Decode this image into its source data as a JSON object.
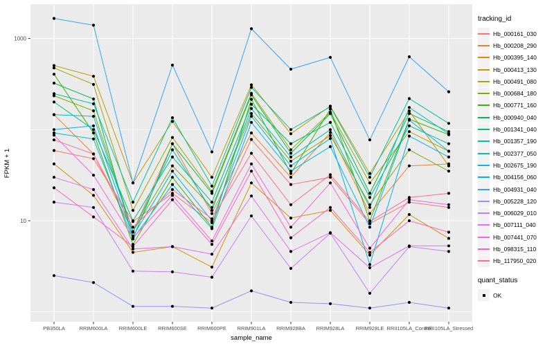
{
  "chart_data": {
    "type": "line",
    "title": "",
    "xlabel": "sample_name",
    "ylabel": "FPKM + 1",
    "x_categories": [
      "PB350LA",
      "RRIM600LA",
      "RRIM600LE",
      "RRIM600SE",
      "RRIM600PE",
      "RRIM901LA",
      "RRIM928BA",
      "RRIM928LA",
      "RRIM928LE",
      "RRII105LA_Control",
      "RRII105LA_Stressed"
    ],
    "y_scale": "log10",
    "ylim": [
      0.8,
      2300
    ],
    "y_ticks": [
      {
        "value": 10,
        "label": "10"
      },
      {
        "value": 1000,
        "label": "1000"
      }
    ],
    "y_gridlines_major": [
      10,
      1000
    ],
    "y_gridlines_minor": [
      1,
      100
    ],
    "grid": true,
    "legend_position": "right",
    "legend_titles": {
      "series": "tracking_id",
      "status": "quant_status"
    },
    "quant_status_items": [
      {
        "label": "OK",
        "marker": "black-square"
      }
    ],
    "point_marker": {
      "shape": "dot",
      "color": "#000000"
    },
    "colors": {
      "panel_bg": "#EBEBEB",
      "gridline": "#FFFFFF",
      "tick_text": "#4D4D4D",
      "axis_title": "#000000",
      "legend_key_bg": "#F2F2F2",
      "point": "#000000"
    },
    "series": [
      {
        "name": "Hb_000161_030",
        "color": "#F8766D",
        "values": [
          59,
          48,
          9.8,
          20,
          9.5,
          78,
          25,
          30,
          9.3,
          16,
          14
        ]
      },
      {
        "name": "Hb_000208_290",
        "color": "#EA8331",
        "values": [
          146,
          54,
          7.6,
          70,
          12,
          92,
          30,
          93,
          12,
          40,
          42
        ]
      },
      {
        "name": "Hb_000395_140",
        "color": "#D89000",
        "values": [
          42,
          19,
          4.5,
          5.2,
          3.1,
          26,
          10.7,
          13,
          4.2,
          11.7,
          6.4
        ]
      },
      {
        "name": "Hb_000413_130",
        "color": "#C09B00",
        "values": [
          505,
          385,
          26,
          123,
          30,
          310,
          90,
          181,
          33,
          160,
          40
        ]
      },
      {
        "name": "Hb_000491_080",
        "color": "#A3A500",
        "values": [
          475,
          313,
          13,
          82,
          21,
          250,
          60,
          155,
          26,
          95,
          58
        ]
      },
      {
        "name": "Hb_000684_180",
        "color": "#7CAE00",
        "values": [
          235,
          161,
          7.6,
          40,
          14,
          150,
          45,
          86,
          15,
          60,
          35
        ]
      },
      {
        "name": "Hb_000771_160",
        "color": "#39B600",
        "values": [
          406,
          92,
          5.5,
          30,
          8.5,
          215,
          33,
          168,
          10,
          130,
          88
        ]
      },
      {
        "name": "Hb_000940_040",
        "color": "#00BB4E",
        "values": [
          324,
          217,
          6.4,
          70,
          20,
          240,
          55,
          150,
          20,
          150,
          95
        ]
      },
      {
        "name": "Hb_001341_040",
        "color": "#00BF7D",
        "values": [
          201,
          100,
          10,
          50,
          16,
          190,
          70,
          120,
          18,
          110,
          70
        ]
      },
      {
        "name": "Hb_001357_190",
        "color": "#00C1A3",
        "values": [
          248,
          192,
          16,
          135,
          24,
          290,
          100,
          178,
          30,
          219,
          117
        ]
      },
      {
        "name": "Hb_002377_050",
        "color": "#00BFC4",
        "values": [
          146,
          140,
          7.5,
          60,
          13,
          170,
          50,
          100,
          14,
          175,
          90
        ]
      },
      {
        "name": "Hb_002675_190",
        "color": "#00BAE0",
        "values": [
          92,
          79,
          6.3,
          25,
          8.2,
          120,
          35,
          65,
          8.5,
          127,
          58
        ]
      },
      {
        "name": "Hb_004156_060",
        "color": "#00B0F6",
        "values": [
          100,
          110,
          6.8,
          35,
          10,
          140,
          40,
          80,
          3.3,
          85,
          50
        ]
      },
      {
        "name": "Hb_004931_040",
        "color": "#35A2FF",
        "values": [
          1660,
          1400,
          26,
          510,
          57,
          1280,
          460,
          620,
          77,
          630,
          260
        ]
      },
      {
        "name": "Hb_005228_120",
        "color": "#9590FF",
        "values": [
          2.5,
          2.1,
          1.15,
          1.15,
          1.1,
          1.7,
          1.27,
          1.23,
          1.1,
          1.27,
          1.1
        ]
      },
      {
        "name": "Hb_006029_010",
        "color": "#C77CFF",
        "values": [
          16,
          14,
          2.8,
          2.75,
          2.4,
          11.3,
          3.0,
          7.3,
          1.6,
          5.2,
          4.6
        ]
      },
      {
        "name": "Hb_007111_040",
        "color": "#E76BF3",
        "values": [
          30,
          22,
          4.9,
          5.2,
          4.3,
          18.7,
          4.6,
          7.4,
          3.05,
          5.3,
          5.3
        ]
      },
      {
        "name": "Hb_007441_070",
        "color": "#FA62DB",
        "values": [
          87,
          31.6,
          6.5,
          19,
          6,
          42,
          8.5,
          26,
          5,
          17,
          15
        ]
      },
      {
        "name": "Hb_098315_110",
        "color": "#FF62BC",
        "values": [
          23,
          11,
          5.2,
          17,
          5.5,
          35,
          6.5,
          14,
          4.5,
          10,
          7.5
        ]
      },
      {
        "name": "Hb_117950_020",
        "color": "#FF6A98",
        "values": [
          77,
          54,
          8.5,
          22,
          10.5,
          55,
          15,
          32,
          9.8,
          18,
          20
        ]
      }
    ]
  }
}
